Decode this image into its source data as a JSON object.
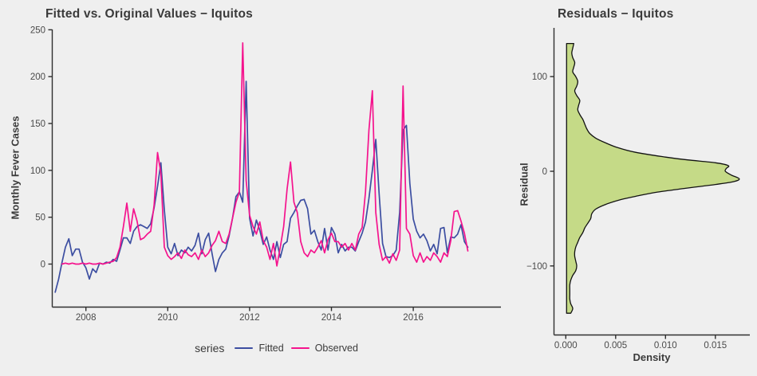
{
  "page": {
    "background": "#efefef"
  },
  "left_chart": {
    "title": "Fitted vs. Original Values − Iquitos",
    "y_label": "Monthly Fever Cases",
    "legend": {
      "title": "series",
      "items": [
        {
          "label": "Fitted",
          "color": "#3c4ea1"
        },
        {
          "label": "Observed",
          "color": "#f5138d"
        }
      ]
    }
  },
  "right_chart": {
    "title": "Residuals − Iquitos",
    "y_label": "Residual",
    "x_label": "Density"
  },
  "chart_data": [
    {
      "type": "line",
      "title": "Fitted vs. Original Values − Iquitos",
      "xlabel": "",
      "ylabel": "Monthly Fever Cases",
      "legend_title": "series",
      "legend_position": "bottom",
      "grid": false,
      "x_start_year": 2007.25,
      "x_step_years": 0.0833333,
      "xlim": [
        2007.05,
        2017.6
      ],
      "ylim": [
        -46,
        250
      ],
      "x_ticks": [
        2008,
        2010,
        2012,
        2014,
        2016
      ],
      "x_tick_labels": [
        "2008",
        "2010",
        "2012",
        "2014",
        "2016"
      ],
      "y_ticks": [
        0,
        50,
        100,
        150,
        200,
        250
      ],
      "y_tick_labels": [
        "0",
        "50",
        "100",
        "150",
        "200",
        "250"
      ],
      "series": [
        {
          "name": "Fitted",
          "color": "#3c4ea1",
          "values": [
            -30,
            -16,
            2,
            18,
            27,
            9,
            16,
            16,
            2,
            -4,
            -16,
            -5,
            -9,
            1,
            0,
            2,
            1,
            5,
            3,
            15,
            28,
            28,
            22,
            35,
            40,
            42,
            40,
            38,
            43,
            60,
            83,
            108,
            58,
            18,
            11,
            22,
            9,
            15,
            12,
            18,
            14,
            20,
            33,
            11,
            26,
            33,
            11,
            -8,
            5,
            12,
            16,
            30,
            49,
            72,
            77,
            66,
            195,
            49,
            30,
            47,
            36,
            21,
            29,
            15,
            5,
            24,
            7,
            21,
            24,
            49,
            55,
            62,
            68,
            69,
            59,
            32,
            36,
            24,
            15,
            38,
            15,
            39,
            32,
            12,
            21,
            14,
            18,
            18,
            14,
            24,
            33,
            45,
            70,
            100,
            133,
            75,
            22,
            8,
            7,
            9,
            15,
            55,
            143,
            148,
            86,
            48,
            35,
            28,
            32,
            25,
            14,
            21,
            11,
            38,
            39,
            12,
            29,
            28,
            32,
            42,
            24,
            18
          ]
        },
        {
          "name": "Observed",
          "color": "#f5138d",
          "values": [
            null,
            null,
            0,
            1,
            0,
            1,
            0,
            0,
            1,
            0,
            1,
            0,
            0,
            1,
            0,
            1,
            2,
            3,
            7,
            18,
            40,
            65,
            35,
            59,
            46,
            26,
            28,
            32,
            35,
            63,
            119,
            97,
            18,
            9,
            5,
            8,
            12,
            6,
            15,
            10,
            8,
            12,
            5,
            15,
            8,
            12,
            20,
            25,
            35,
            24,
            22,
            32,
            49,
            66,
            77,
            236,
            89,
            52,
            40,
            32,
            45,
            25,
            18,
            5,
            22,
            -2,
            18,
            40,
            80,
            109,
            66,
            55,
            24,
            12,
            8,
            15,
            12,
            18,
            25,
            12,
            26,
            33,
            24,
            24,
            18,
            22,
            15,
            22,
            15,
            32,
            39,
            77,
            143,
            185,
            55,
            21,
            4,
            8,
            1,
            11,
            4,
            15,
            190,
            38,
            32,
            9,
            2,
            12,
            2,
            8,
            4,
            12,
            8,
            2,
            12,
            8,
            25,
            56,
            57,
            46,
            33,
            14
          ]
        }
      ]
    },
    {
      "type": "area",
      "title": "Residuals − Iquitos",
      "xlabel": "Density",
      "ylabel": "Residual",
      "grid": false,
      "fill": "#c5da87",
      "stroke": "#111111",
      "xlim": [
        0,
        0.0185
      ],
      "ylim": [
        -160,
        145
      ],
      "x_ticks": [
        0,
        0.005,
        0.01,
        0.015
      ],
      "x_tick_labels": [
        "0.000",
        "0.005",
        "0.010",
        "0.015"
      ],
      "y_ticks": [
        100,
        0,
        -100
      ],
      "y_tick_labels": [
        "100",
        "0",
        "−100"
      ],
      "points_residual_density": [
        [
          135,
          0.0008
        ],
        [
          130,
          0.0007
        ],
        [
          125,
          0.0006
        ],
        [
          120,
          0.0007
        ],
        [
          115,
          0.0009
        ],
        [
          110,
          0.0008
        ],
        [
          105,
          0.0007
        ],
        [
          100,
          0.001
        ],
        [
          95,
          0.0012
        ],
        [
          90,
          0.0011
        ],
        [
          85,
          0.0009
        ],
        [
          80,
          0.0011
        ],
        [
          75,
          0.0014
        ],
        [
          70,
          0.0013
        ],
        [
          65,
          0.0012
        ],
        [
          60,
          0.0014
        ],
        [
          55,
          0.0017
        ],
        [
          50,
          0.0019
        ],
        [
          45,
          0.0021
        ],
        [
          40,
          0.0024
        ],
        [
          35,
          0.003
        ],
        [
          30,
          0.004
        ],
        [
          25,
          0.0052
        ],
        [
          20,
          0.007
        ],
        [
          15,
          0.01
        ],
        [
          12,
          0.0122
        ],
        [
          9,
          0.015
        ],
        [
          6,
          0.0163
        ],
        [
          3,
          0.0161
        ],
        [
          0,
          0.016
        ],
        [
          -4,
          0.0166
        ],
        [
          -8,
          0.0174
        ],
        [
          -11,
          0.0168
        ],
        [
          -14,
          0.015
        ],
        [
          -18,
          0.012
        ],
        [
          -22,
          0.0092
        ],
        [
          -26,
          0.0072
        ],
        [
          -30,
          0.0055
        ],
        [
          -35,
          0.004
        ],
        [
          -40,
          0.003
        ],
        [
          -45,
          0.0026
        ],
        [
          -50,
          0.0025
        ],
        [
          -55,
          0.0022
        ],
        [
          -60,
          0.0019
        ],
        [
          -65,
          0.0017
        ],
        [
          -70,
          0.0014
        ],
        [
          -75,
          0.0012
        ],
        [
          -80,
          0.001
        ],
        [
          -85,
          0.0009
        ],
        [
          -90,
          0.0009
        ],
        [
          -95,
          0.001
        ],
        [
          -100,
          0.0011
        ],
        [
          -105,
          0.001
        ],
        [
          -110,
          0.0007
        ],
        [
          -115,
          0.0005
        ],
        [
          -120,
          0.0004
        ],
        [
          -125,
          0.0004
        ],
        [
          -130,
          0.0004
        ],
        [
          -135,
          0.0004
        ],
        [
          -140,
          0.0005
        ],
        [
          -145,
          0.0007
        ],
        [
          -150,
          0.0005
        ]
      ]
    }
  ],
  "style": {
    "axis_line_color": "#2f2f2f",
    "tick_text_color": "#4a4a4a",
    "density_baseline": 8e-05
  }
}
